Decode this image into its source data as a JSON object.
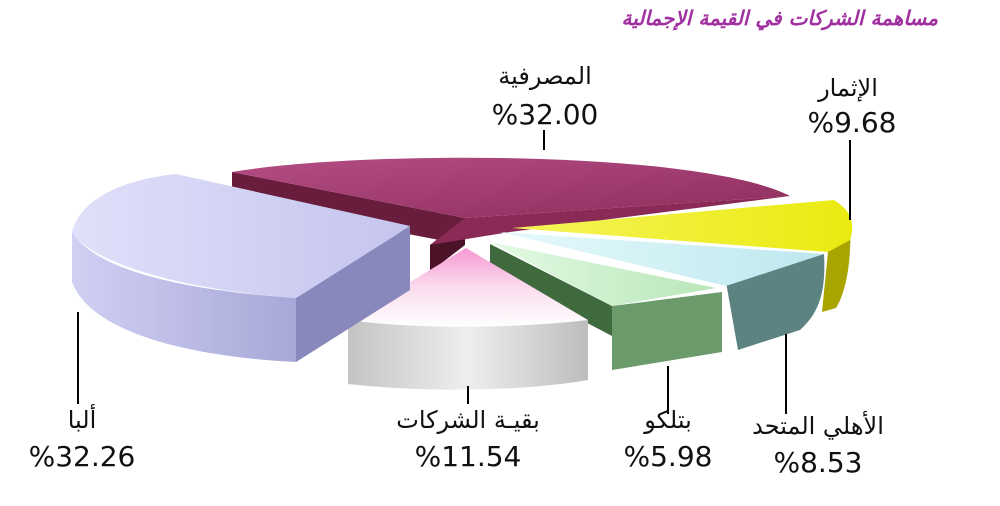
{
  "chart_data": {
    "type": "pie",
    "title": "مساهمة الشركات في القيمة الإجمالية",
    "slices": [
      {
        "label": "المصرفية",
        "value": 32.0,
        "value_text": "%32.00",
        "color": "#a03c6e"
      },
      {
        "label": "الإثمار",
        "value": 9.68,
        "value_text": "%9.68",
        "color": "#f2f018"
      },
      {
        "label": "الأهلي المتحد",
        "value": 8.53,
        "value_text": "%8.53",
        "color": "#c8eef4"
      },
      {
        "label": "بتلكو",
        "value": 5.98,
        "value_text": "%5.98",
        "color": "#c8f0c8"
      },
      {
        "label": "بقيـة الشركات",
        "value": 11.54,
        "value_text": "%11.54",
        "color": "#f4a8d8"
      },
      {
        "label": "ألبا",
        "value": 32.26,
        "value_text": "%32.26",
        "color": "#c8c8f0"
      }
    ]
  }
}
